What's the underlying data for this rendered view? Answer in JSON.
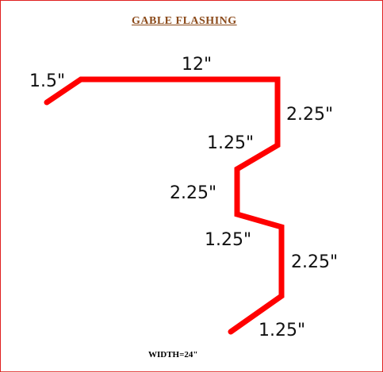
{
  "title": "GABLE FLASHING",
  "width_note": "WIDTH=24\"",
  "stroke_color": "#ff0000",
  "dimensions": {
    "hem": "1.5\"",
    "top": "12\"",
    "drop1": "2.25\"",
    "step1": "1.25\"",
    "drop2": "2.25\"",
    "step2": "1.25\"",
    "drop3": "2.25\"",
    "kick": "1.25\""
  }
}
